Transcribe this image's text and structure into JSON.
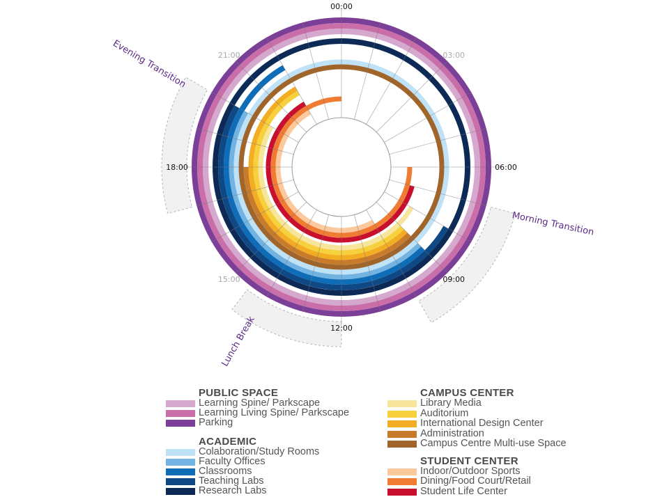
{
  "chart_data": {
    "type": "radial-timeline",
    "title": "",
    "hour_range": [
      0,
      24
    ],
    "hour_labels": [
      {
        "text": "00:00",
        "hour": 0,
        "emphasis": true
      },
      {
        "text": "03:00",
        "hour": 3,
        "emphasis": false
      },
      {
        "text": "06:00",
        "hour": 6,
        "emphasis": true
      },
      {
        "text": "09:00",
        "hour": 9,
        "emphasis": true
      },
      {
        "text": "12:00",
        "hour": 12,
        "emphasis": true
      },
      {
        "text": "15:00",
        "hour": 15,
        "emphasis": false
      },
      {
        "text": "18:00",
        "hour": 18,
        "emphasis": true
      },
      {
        "text": "21:00",
        "hour": 21,
        "emphasis": false
      }
    ],
    "zones": [
      {
        "label": "Morning  Transition",
        "start": 7,
        "end": 10
      },
      {
        "label": "Lunch Break",
        "start": 12,
        "end": 14.5
      },
      {
        "label": "Evening Transition",
        "start": 17,
        "end": 20
      }
    ],
    "rings": [
      {
        "name": "Parking",
        "group": "public",
        "color": "#7c3f98",
        "start": 0,
        "end": 24
      },
      {
        "name": "Learning Living Spine/ Parkscape",
        "group": "public",
        "color": "#c96ea9",
        "start": 0,
        "end": 24
      },
      {
        "name": "Learning Spine/ Parkscape",
        "group": "public",
        "color": "#d5a8cd",
        "start": 0,
        "end": 24
      },
      {
        "name": "Research Labs",
        "group": "academic",
        "color": "#0c2a55",
        "start": 0,
        "end": 24
      },
      {
        "name": "Teaching Labs",
        "group": "academic",
        "color": "#0e4885",
        "start": 8,
        "end": 20
      },
      {
        "name": "Classrooms",
        "group": "academic",
        "color": "#0f6cb6",
        "start": 9,
        "end": 22
      },
      {
        "name": "Faculty Offices",
        "group": "academic",
        "color": "#72b3e2",
        "start": 9,
        "end": 20
      },
      {
        "name": "Colaboration/Study Rooms",
        "group": "academic",
        "color": "#c0e2f6",
        "start": 0,
        "end": 24
      },
      {
        "name": "Campus Centre Multi-use Space",
        "group": "campus",
        "color": "#a0652b",
        "start": 0,
        "end": 24
      },
      {
        "name": "Administration",
        "group": "campus",
        "color": "#c77b2b",
        "start": 9,
        "end": 18
      },
      {
        "name": "International Design Center",
        "group": "campus",
        "color": "#f3ad23",
        "start": 9,
        "end": 22
      },
      {
        "name": "Auditorium",
        "group": "campus",
        "color": "#f6d03d",
        "start": 9,
        "end": 22
      },
      {
        "name": "Library Media",
        "group": "campus",
        "color": "#f7e59c",
        "start": 8,
        "end": 20
      },
      {
        "name": "Student Life Center",
        "group": "student",
        "color": "#c8102e",
        "start": 7,
        "end": 22
      },
      {
        "name": "Dining/Food Court/Retail",
        "group": "student",
        "color": "#f07b32",
        "start": 6,
        "end": 24
      },
      {
        "name": "Indoor/Outdoor Sports",
        "group": "student",
        "color": "#fbc99c",
        "start": 10,
        "end": 22
      }
    ]
  },
  "legend": {
    "public": {
      "title": "PUBLIC SPACE",
      "items": [
        {
          "label": "Learning Spine/ Parkscape",
          "color": "#d5a8cd"
        },
        {
          "label": "Learning Living Spine/ Parkscape",
          "color": "#c96ea9"
        },
        {
          "label": "Parking",
          "color": "#7c3f98"
        }
      ]
    },
    "academic": {
      "title": "ACADEMIC",
      "items": [
        {
          "label": "Colaboration/Study Rooms",
          "color": "#c0e2f6"
        },
        {
          "label": "Faculty Offices",
          "color": "#72b3e2"
        },
        {
          "label": "Classrooms",
          "color": "#0f6cb6"
        },
        {
          "label": "Teaching Labs",
          "color": "#0e4885"
        },
        {
          "label": "Research Labs",
          "color": "#0c2a55"
        }
      ]
    },
    "campus": {
      "title": "CAMPUS CENTER",
      "items": [
        {
          "label": "Library Media",
          "color": "#f7e59c"
        },
        {
          "label": "Auditorium",
          "color": "#f6d03d"
        },
        {
          "label": "International Design Center",
          "color": "#f3ad23"
        },
        {
          "label": "Administration",
          "color": "#c77b2b"
        },
        {
          "label": "Campus Centre Multi-use Space",
          "color": "#a0652b"
        }
      ]
    },
    "student": {
      "title": "STUDENT CENTER",
      "items": [
        {
          "label": "Indoor/Outdoor Sports",
          "color": "#fbc99c"
        },
        {
          "label": "Dining/Food Court/Retail",
          "color": "#f07b32"
        },
        {
          "label": "Student Life Center",
          "color": "#c8102e"
        }
      ]
    }
  }
}
